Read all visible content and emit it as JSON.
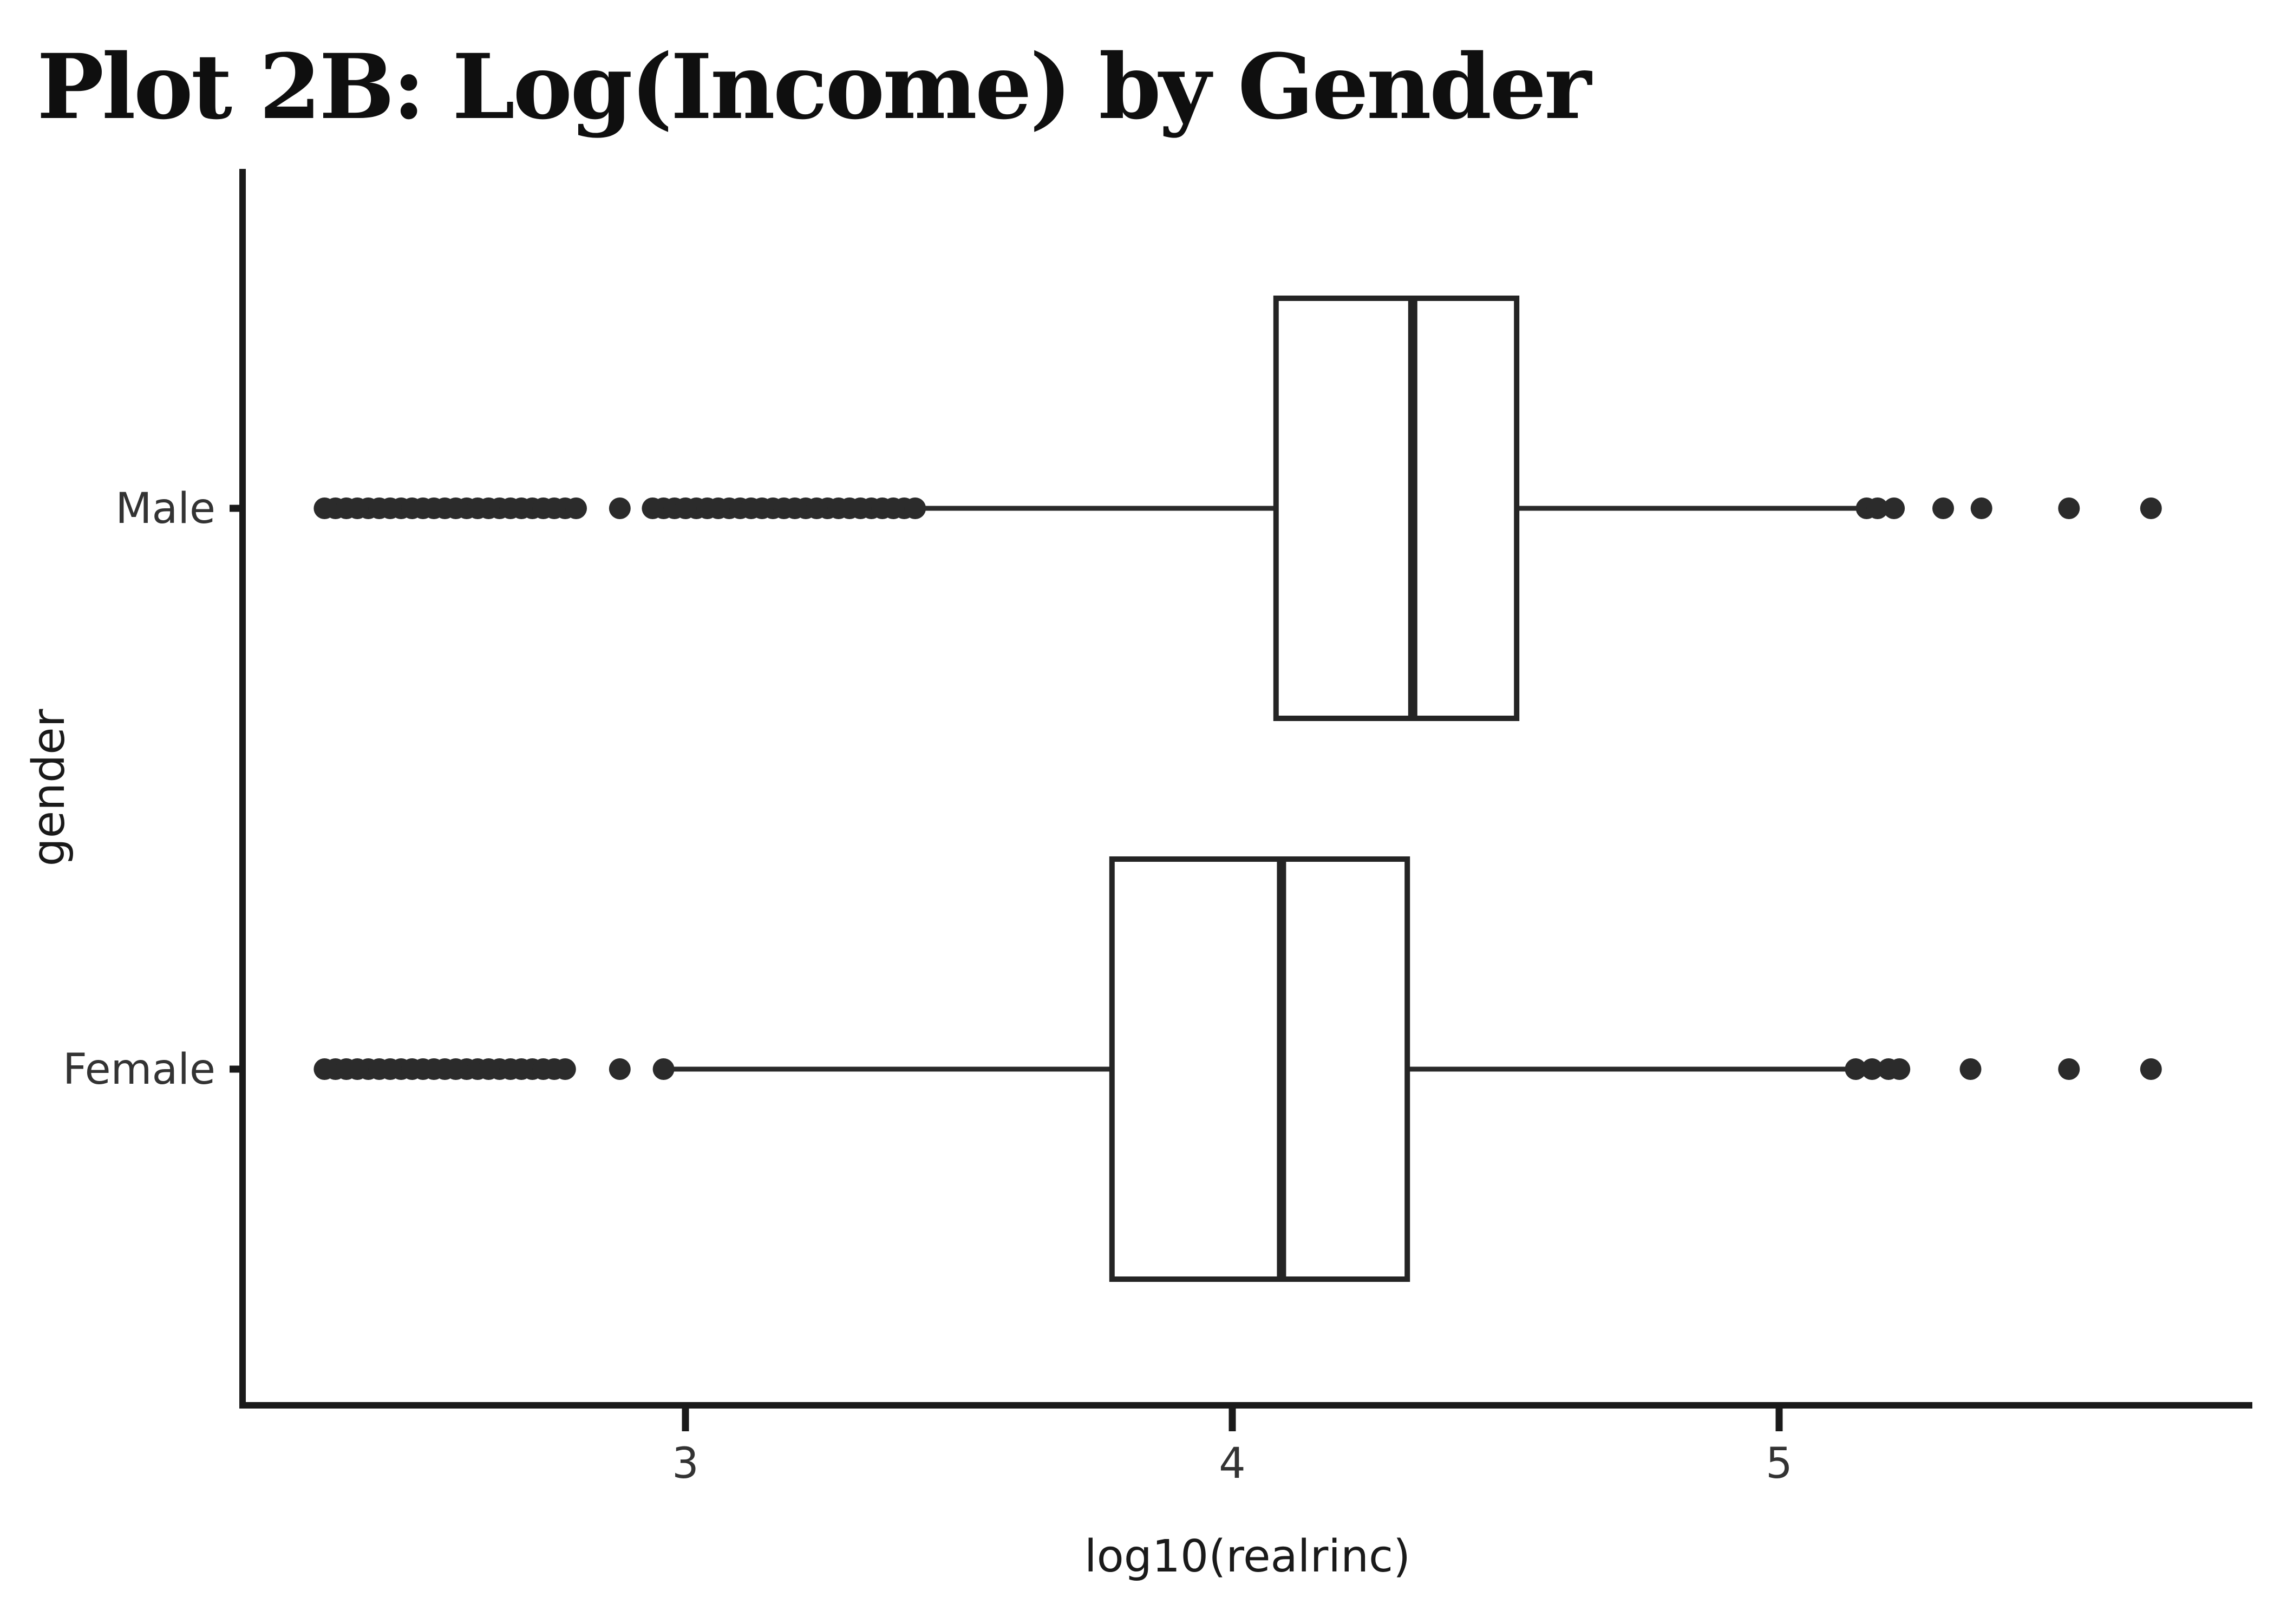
{
  "page": {
    "background": "#ffffff"
  },
  "chart_data": {
    "type": "boxplot",
    "orientation": "horizontal",
    "title": "Plot 2B: Log(Income) by Gender",
    "xlabel": "log10(realrinc)",
    "ylabel": "gender",
    "xticks": [
      "3",
      "4",
      "5"
    ],
    "xtick_values": [
      3,
      4,
      5
    ],
    "xlim": [
      2.19,
      5.87
    ],
    "grid": false,
    "legend": "none",
    "categories": [
      "Male",
      "Female"
    ],
    "series": [
      {
        "name": "Male",
        "whisker_low": 3.43,
        "q1": 4.08,
        "median": 4.33,
        "q3": 4.52,
        "whisker_high": 5.16,
        "outliers_low": [
          2.34,
          2.36,
          2.38,
          2.4,
          2.42,
          2.44,
          2.46,
          2.48,
          2.5,
          2.52,
          2.54,
          2.56,
          2.58,
          2.6,
          2.62,
          2.64,
          2.66,
          2.68,
          2.7,
          2.72,
          2.74,
          2.76,
          2.78,
          2.8,
          2.88,
          2.94,
          2.96,
          2.98,
          3.0,
          3.02,
          3.04,
          3.06,
          3.08,
          3.1,
          3.12,
          3.14,
          3.16,
          3.18,
          3.2,
          3.22,
          3.24,
          3.26,
          3.28,
          3.3,
          3.32,
          3.34,
          3.36,
          3.38,
          3.4,
          3.42
        ],
        "outliers_high": [
          5.16,
          5.18,
          5.21,
          5.3,
          5.37,
          5.53,
          5.68
        ]
      },
      {
        "name": "Female",
        "whisker_low": 2.97,
        "q1": 3.78,
        "median": 4.09,
        "q3": 4.32,
        "whisker_high": 5.13,
        "outliers_low": [
          2.34,
          2.36,
          2.38,
          2.4,
          2.42,
          2.44,
          2.46,
          2.48,
          2.5,
          2.52,
          2.54,
          2.56,
          2.58,
          2.6,
          2.62,
          2.64,
          2.66,
          2.68,
          2.7,
          2.72,
          2.74,
          2.76,
          2.78,
          2.88,
          2.96
        ],
        "outliers_high": [
          5.14,
          5.17,
          5.2,
          5.22,
          5.35,
          5.53,
          5.68
        ]
      }
    ],
    "colors": {
      "ink": "#1a1a1a",
      "box_stroke": "#242424",
      "whisker": "#2a2a2a",
      "dot": "#2b2b2b",
      "background": "#ffffff",
      "tick_text": "#333333"
    }
  }
}
